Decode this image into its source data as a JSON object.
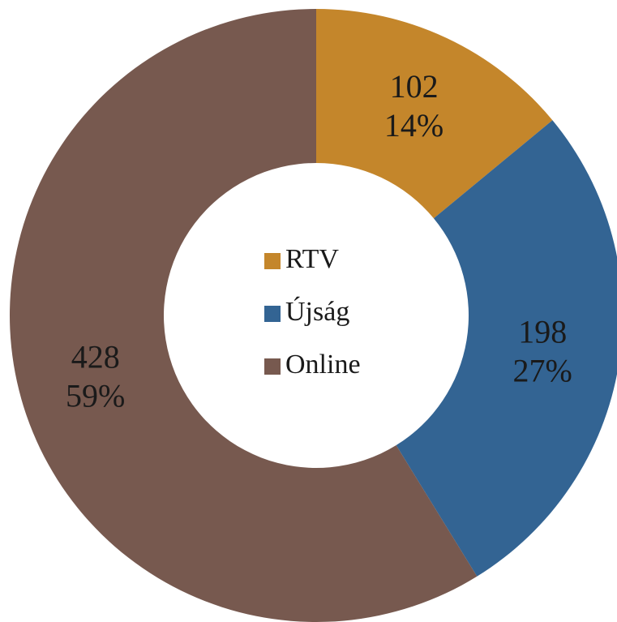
{
  "chart_data": {
    "type": "donut",
    "categories": [
      "RTV",
      "Újság",
      "Online"
    ],
    "values": [
      102,
      198,
      428
    ],
    "percent_values": [
      14,
      27,
      59
    ],
    "percent_labels": [
      "14%",
      "27%",
      "59%"
    ],
    "colors": [
      "#c4862b",
      "#336493",
      "#77594f"
    ],
    "legend": "center"
  }
}
